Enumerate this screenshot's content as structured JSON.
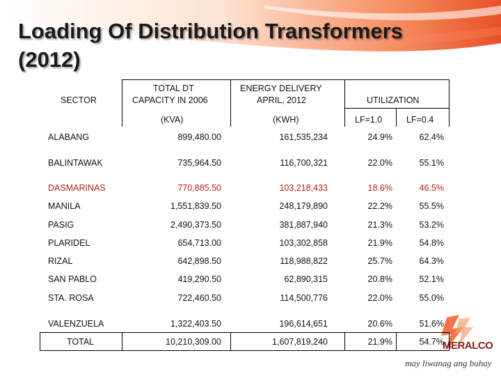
{
  "title_line1": "Loading Of Distribution Transformers",
  "title_line2": "(2012)",
  "headers": {
    "sector": "SECTOR",
    "capacity_line1": "TOTAL DT",
    "capacity_line2": "CAPACITY IN 2006",
    "capacity_unit": "(KVA)",
    "energy_line1": "ENERGY DELIVERY",
    "energy_line2": "APRIL, 2012",
    "energy_unit": "(KWH)",
    "utilization": "UTILIZATION",
    "lf1": "LF=1.0",
    "lf04": "LF=0.4"
  },
  "rows": [
    {
      "sector": "ALABANG",
      "capacity": "899,480.00",
      "energy": "161,535,234",
      "lf1": "24.9%",
      "lf04": "62.4%"
    },
    {
      "sector": "BALINTAWAK",
      "capacity": "735,964.50",
      "energy": "116,700,321",
      "lf1": "22.0%",
      "lf04": "55.1%"
    },
    {
      "sector": "DASMARINAS",
      "capacity": "770,885.50",
      "energy": "103,218,433",
      "lf1": "18.6%",
      "lf04": "46.5%"
    },
    {
      "sector": "MANILA",
      "capacity": "1,551,839.50",
      "energy": "248,179,890",
      "lf1": "22.2%",
      "lf04": "55.5%"
    },
    {
      "sector": "PASIG",
      "capacity": "2,490,373.50",
      "energy": "381,887,940",
      "lf1": "21.3%",
      "lf04": "53.2%"
    },
    {
      "sector": "PLARIDEL",
      "capacity": "654,713.00",
      "energy": "103,302,858",
      "lf1": "21.9%",
      "lf04": "54.8%"
    },
    {
      "sector": "RIZAL",
      "capacity": "642,898.50",
      "energy": "118,988,822",
      "lf1": "25.7%",
      "lf04": "64.3%"
    },
    {
      "sector": "SAN PABLO",
      "capacity": "419,290.50",
      "energy": "62,890,315",
      "lf1": "20.8%",
      "lf04": "52.1%"
    },
    {
      "sector": "STA. ROSA",
      "capacity": "722,460.50",
      "energy": "114,500,776",
      "lf1": "22.0%",
      "lf04": "55.0%"
    },
    {
      "sector": "VALENZUELA",
      "capacity": "1,322,403.50",
      "energy": "196,614,651",
      "lf1": "20.6%",
      "lf04": "51.6%"
    }
  ],
  "total": {
    "sector": "TOTAL",
    "capacity": "10,210,309.00",
    "energy": "1,607,819,240",
    "lf1": "21.9%",
    "lf04": "54.7%"
  },
  "highlight_color": "#b0241c",
  "logo_text": "MERALCO",
  "tagline": "may liwanag ang buhay"
}
